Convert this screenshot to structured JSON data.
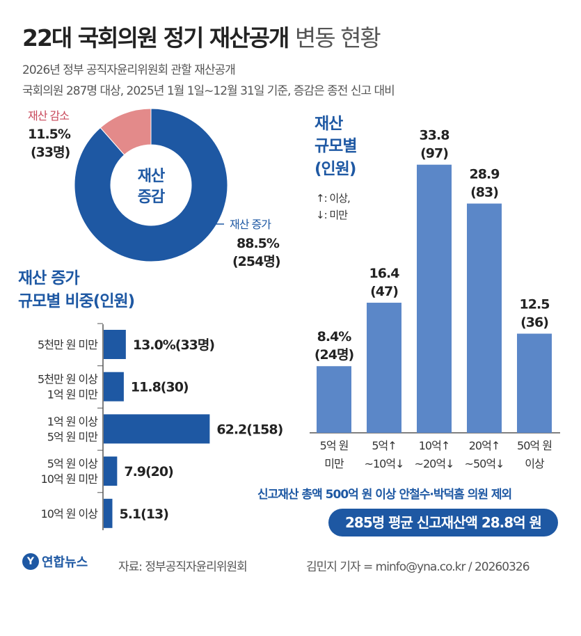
{
  "header": {
    "title_bold": "22대 국회의원 정기 재산공개",
    "title_light": "변동 현황",
    "subtitle1": "2026년 정부 공직자윤리위원회 관할 재산공개",
    "subtitle2": "국회의원 287명 대상, 2025년 1월 1일~12월 31일 기준, 증감은 종전 신고 대비"
  },
  "chart_data": [
    {
      "type": "pie",
      "center_label": [
        "재산",
        "증감"
      ],
      "slices": [
        {
          "name": "재산 증가",
          "value": 88.5,
          "count_label": "(254명)",
          "value_label": "88.5%",
          "color": "#1e58a3"
        },
        {
          "name": "재산 감소",
          "value": 11.5,
          "count_label": "(33명)",
          "value_label": "11.5%",
          "color": "#e38a8a"
        }
      ]
    },
    {
      "type": "bar",
      "orientation": "horizontal",
      "title": [
        "재산 증가",
        "규모별 비중(인원)"
      ],
      "categories": [
        [
          "5천만 원 미만"
        ],
        [
          "5천만 원 이상",
          "1억 원 미만"
        ],
        [
          "1억 원 이상",
          "5억 원 미만"
        ],
        [
          "5억 원 이상",
          "10억 원 미만"
        ],
        [
          "10억 원 이상"
        ]
      ],
      "values": [
        13.0,
        11.8,
        62.2,
        7.9,
        5.1
      ],
      "data_labels": [
        "13.0%(33명)",
        "11.8(30)",
        "62.2(158)",
        "7.9(20)",
        "5.1(13)"
      ],
      "color": "#1e58a3"
    },
    {
      "type": "bar",
      "orientation": "vertical",
      "title": [
        "재산",
        "규모별",
        "(인원)"
      ],
      "legend_note": [
        "↑: 이상,",
        "↓: 미만"
      ],
      "categories": [
        [
          "5억 원",
          "미만"
        ],
        [
          "5억↑",
          "~10억↓"
        ],
        [
          "10억↑",
          "~20억↓"
        ],
        [
          "20억↑",
          "~50억↓"
        ],
        [
          "50억 원",
          "이상"
        ]
      ],
      "values": [
        8.4,
        16.4,
        33.8,
        28.9,
        12.5
      ],
      "data_labels": [
        [
          "8.4%",
          "(24명)"
        ],
        [
          "16.4",
          "(47)"
        ],
        [
          "33.8",
          "(97)"
        ],
        [
          "28.9",
          "(83)"
        ],
        [
          "12.5",
          "(36)"
        ]
      ],
      "color": "#5b87c8"
    }
  ],
  "note": "신고재산 총액 500억 원 이상 안철수·박덕흠 의원 제외",
  "summary": "285명 평균 신고재산액 28.8억 원",
  "footer": {
    "logo": "연합뉴스",
    "source": "자료: 정부공직자윤리위원회",
    "credit": "김민지 기자 = minfo@yna.co.kr / 20260326"
  }
}
